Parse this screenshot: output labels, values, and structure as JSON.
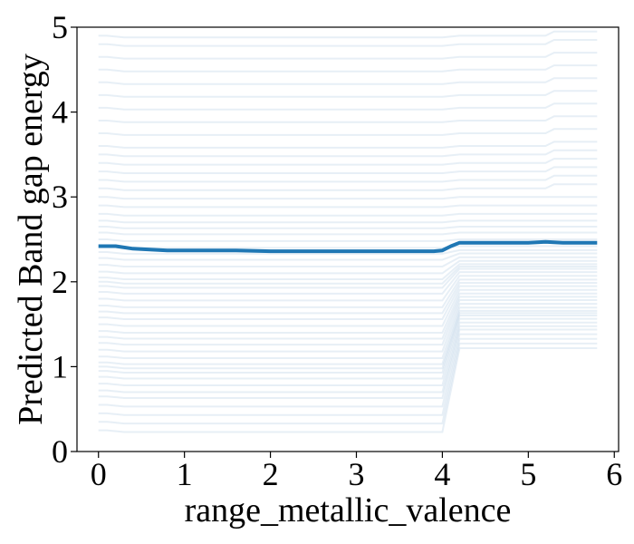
{
  "chart_data": {
    "type": "line",
    "title": "",
    "xlabel": "range_metallic_valence",
    "ylabel": "Predicted Band gap energy",
    "xlim": [
      -0.25,
      6.05
    ],
    "ylim": [
      0,
      5
    ],
    "xticks": [
      "0",
      "1",
      "2",
      "3",
      "4",
      "5",
      "6"
    ],
    "yticks": [
      "0",
      "1",
      "2",
      "3",
      "4",
      "5"
    ],
    "grid": false,
    "legend": "none",
    "colors": {
      "ice": "#c9dcec",
      "average": "#1f77b4"
    },
    "series": [
      {
        "kind": "average",
        "x": [
          0.0,
          0.2,
          0.4,
          0.8,
          1.2,
          1.6,
          2.0,
          2.4,
          2.8,
          3.2,
          3.6,
          3.9,
          4.0,
          4.1,
          4.2,
          4.6,
          5.0,
          5.2,
          5.4,
          5.8
        ],
        "y": [
          2.42,
          2.42,
          2.39,
          2.37,
          2.37,
          2.37,
          2.36,
          2.36,
          2.36,
          2.36,
          2.36,
          2.36,
          2.37,
          2.42,
          2.46,
          2.46,
          2.46,
          2.47,
          2.46,
          2.46
        ]
      }
    ],
    "ice_curves": {
      "x_knots": [
        0.0,
        0.1,
        0.3,
        4.0,
        4.2,
        5.2,
        5.3,
        5.8
      ],
      "base_levels": [
        0.25,
        0.35,
        0.45,
        0.55,
        0.65,
        0.72,
        0.8,
        0.88,
        0.95,
        1.0,
        1.05,
        1.12,
        1.2,
        1.28,
        1.35,
        1.42,
        1.5,
        1.58,
        1.65,
        1.72,
        1.8,
        1.88,
        1.95,
        2.0,
        2.05,
        2.12,
        2.2,
        2.28,
        2.35,
        2.42,
        2.5,
        2.58,
        2.65,
        2.72,
        2.8,
        2.9,
        3.0,
        3.1,
        3.2,
        3.3,
        3.4,
        3.5,
        3.6,
        3.75,
        3.9,
        4.05,
        4.2,
        4.35,
        4.5,
        4.65,
        4.8,
        4.9
      ]
    }
  }
}
